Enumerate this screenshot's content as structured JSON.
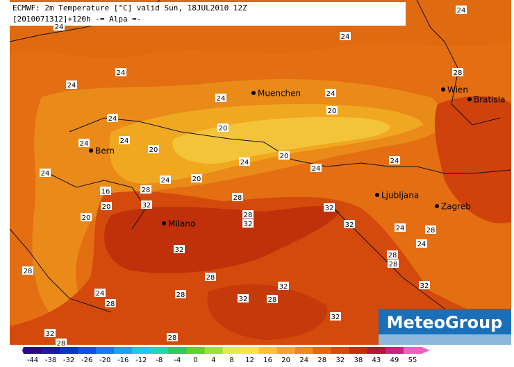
{
  "header": {
    "line1": "ECMWF: 2m Temperature [°C] valid Sun, 18JUL2010 12Z",
    "line2": "[2010071312]+120h -= Alpa =-"
  },
  "cities": [
    "Muenchen",
    "Wien",
    "Bratisla",
    "Bern",
    "Ljubljana",
    "Zagreb",
    "Milano"
  ],
  "contour_labels": [
    "24",
    "24",
    "24",
    "24",
    "24",
    "28",
    "24",
    "24",
    "20",
    "24",
    "20",
    "24",
    "24",
    "20",
    "20",
    "24",
    "24",
    "24",
    "24",
    "24",
    "20",
    "28",
    "16",
    "28",
    "20",
    "32",
    "32",
    "28",
    "32",
    "20",
    "32",
    "24",
    "28",
    "24",
    "32",
    "28",
    "28",
    "28",
    "28",
    "32",
    "32",
    "24",
    "28",
    "28",
    "32",
    "28",
    "32",
    "32",
    "28",
    "28"
  ],
  "colorbar_labels": [
    "-44",
    "-38",
    "-32",
    "-26",
    "-20",
    "-16",
    "-12",
    "-8",
    "-4",
    "0",
    "4",
    "8",
    "12",
    "16",
    "20",
    "24",
    "28",
    "32",
    "38",
    "43",
    "49",
    "55"
  ],
  "logo": "MeteoGroup"
}
